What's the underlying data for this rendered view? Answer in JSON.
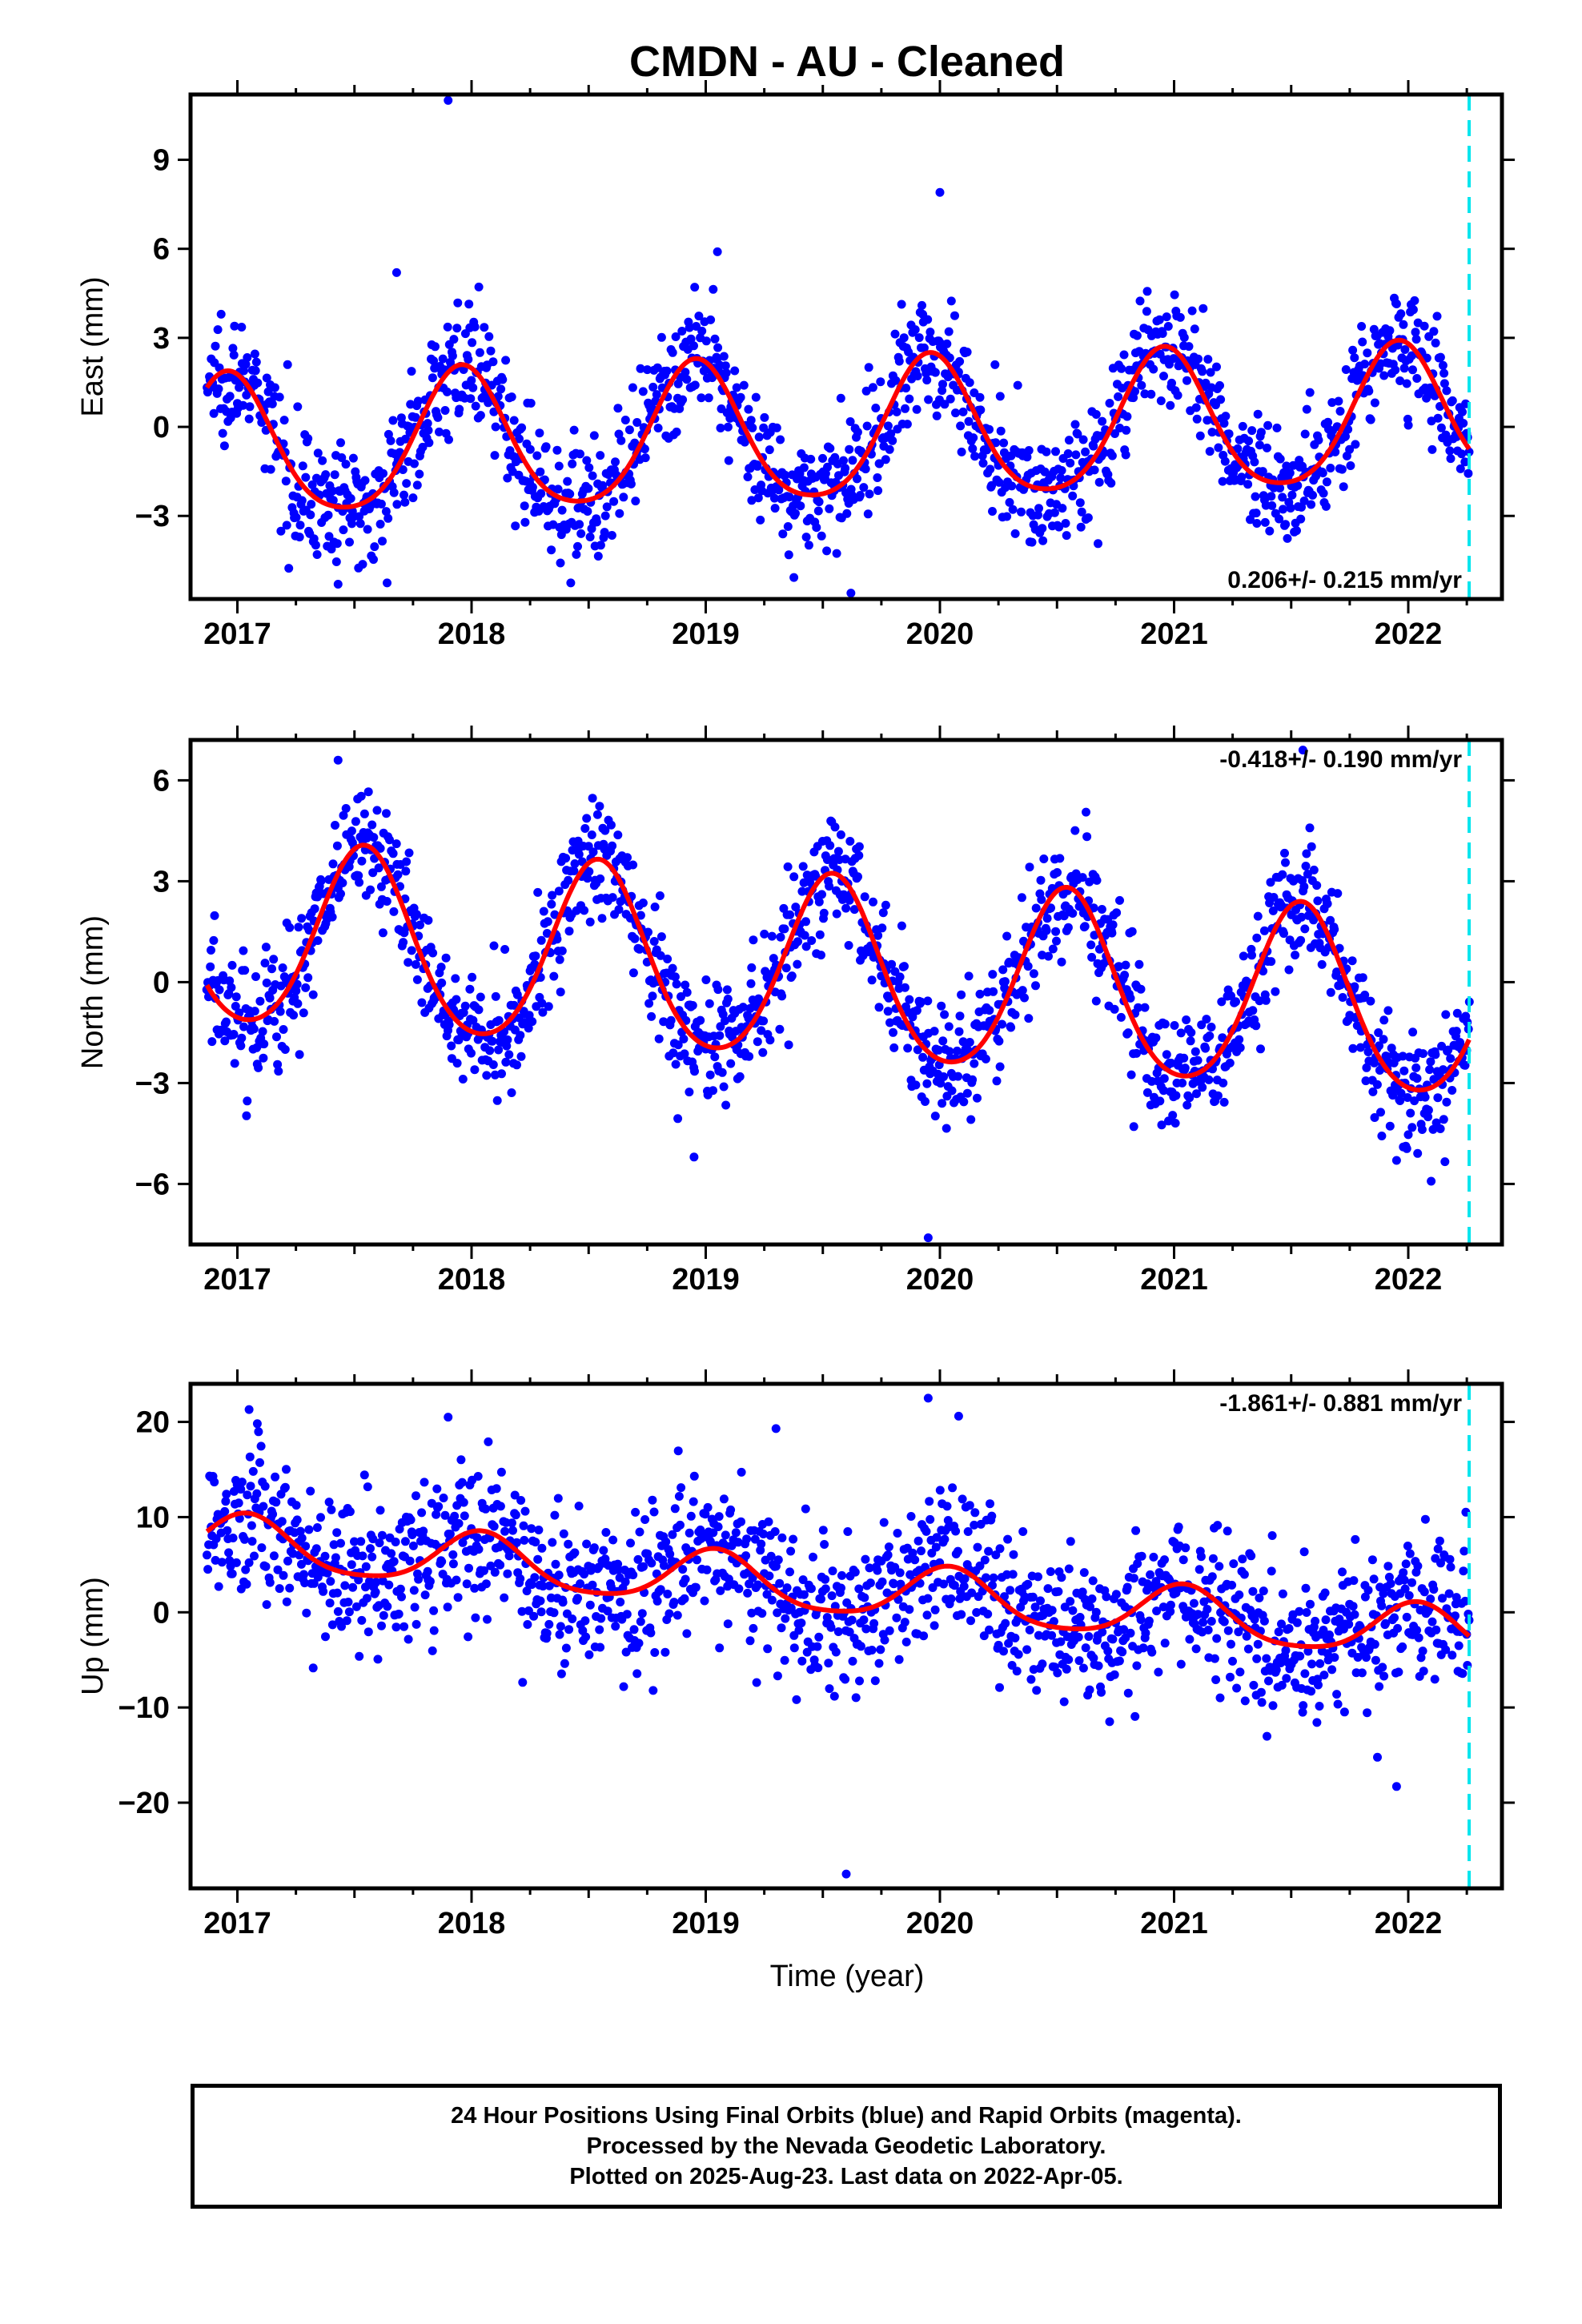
{
  "title": "CMDN  - AU - Cleaned",
  "xlabel": "Time (year)",
  "footer": {
    "line1": "24 Hour Positions Using Final Orbits (blue) and Rapid Orbits (magenta).",
    "line2": "Processed by the Nevada Geodetic Laboratory.",
    "line3": "Plotted on 2025-Aug-23. Last data on 2022-Apr-05."
  },
  "colors": {
    "data": "#0000ff",
    "model": "#ff0000",
    "last_data_marker": "#00e5ee",
    "frame": "#000000"
  },
  "chart_data": [
    {
      "type": "scatter",
      "component": "East",
      "ylabel": "East (mm)",
      "xlim": [
        2016.8,
        2022.4
      ],
      "ylim": [
        -5.8,
        11.2
      ],
      "xticks": [
        "2017",
        "2018",
        "2019",
        "2020",
        "2021",
        "2022"
      ],
      "yticks": [
        "-3",
        "0",
        "3",
        "6",
        "9"
      ],
      "rate_label": "0.206+/- 0.215 mm/yr",
      "rate_label_position": "bottom-right",
      "rate_mm_per_yr": 0.206,
      "rate_sigma_mm_per_yr": 0.215,
      "model": {
        "offset": -0.8,
        "annual_amp": 2.35,
        "peak_month": 12.0,
        "semiannual_amp": 0.35
      },
      "scatter_sigma": 1.0,
      "outliers": [
        [
          2017.9,
          11.0
        ],
        [
          2020.0,
          7.9
        ],
        [
          2019.05,
          5.9
        ],
        [
          2017.68,
          5.2
        ],
        [
          2019.62,
          -5.6
        ],
        [
          2017.43,
          -5.3
        ]
      ],
      "last_data_epoch": 2022.26
    },
    {
      "type": "scatter",
      "component": "North",
      "ylabel": "North (mm)",
      "xlim": [
        2016.8,
        2022.4
      ],
      "ylim": [
        -7.8,
        7.2
      ],
      "xticks": [
        "2017",
        "2018",
        "2019",
        "2020",
        "2021",
        "2022"
      ],
      "yticks": [
        "-6",
        "-3",
        "0",
        "3",
        "6"
      ],
      "rate_label": "-0.418+/- 0.190 mm/yr",
      "rate_label_position": "top-right",
      "rate_mm_per_yr": -0.418,
      "rate_sigma_mm_per_yr": 0.19,
      "model": {
        "offset": 1.3,
        "annual_amp": 2.7,
        "peak_month": 7.0,
        "semiannual_amp": 0.3
      },
      "scatter_sigma": 0.95,
      "outliers": [
        [
          2017.43,
          6.6
        ],
        [
          2019.95,
          -7.6
        ],
        [
          2018.95,
          -5.2
        ],
        [
          2021.55,
          6.9
        ],
        [
          2021.95,
          -5.3
        ]
      ],
      "last_data_epoch": 2022.26
    },
    {
      "type": "scatter",
      "component": "Up",
      "ylabel": "Up (mm)",
      "xlim": [
        2016.8,
        2022.4
      ],
      "ylim": [
        -29.0,
        24.0
      ],
      "xticks": [
        "2017",
        "2018",
        "2019",
        "2020",
        "2021",
        "2022"
      ],
      "yticks": [
        "-20",
        "-10",
        "0",
        "10",
        "20"
      ],
      "rate_label": "-1.861+/- 0.881 mm/yr",
      "rate_label_position": "top-right",
      "rate_mm_per_yr": -1.861,
      "rate_sigma_mm_per_yr": 0.881,
      "model": {
        "offset": 7.2,
        "annual_amp": 2.8,
        "peak_month": 1.0,
        "semiannual_amp": 0.5
      },
      "scatter_sigma": 4.0,
      "outliers": [
        [
          2017.05,
          21.3
        ],
        [
          2017.9,
          20.5
        ],
        [
          2019.95,
          22.5
        ],
        [
          2020.08,
          20.6
        ],
        [
          2019.6,
          -27.5
        ],
        [
          2019.3,
          19.3
        ],
        [
          2021.95,
          -18.3
        ]
      ],
      "last_data_epoch": 2022.26
    }
  ]
}
